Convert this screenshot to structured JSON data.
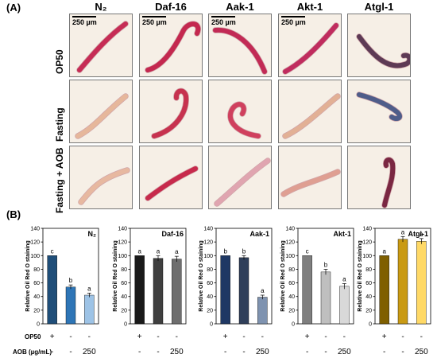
{
  "panel_a_label": "(A)",
  "panel_b_label": "(B)",
  "columns": [
    "N₂",
    "Daf-16",
    "Aak-1",
    "Akt-1",
    "Atgl-1"
  ],
  "rows": [
    "OP50",
    "Fasting",
    "Fasting + AOB"
  ],
  "scale_bar": "250 µm",
  "treatment_rows": {
    "op50_label": "OP50",
    "aob_label": "AOB (µg/mL)",
    "op50_marks": [
      "+",
      "-",
      "-"
    ],
    "aob_marks": [
      "-",
      "-",
      "250"
    ]
  },
  "chart_data": [
    {
      "type": "bar",
      "title": "N₂",
      "ylabel": "Relative Oil Red O staining",
      "ylim": [
        0,
        140
      ],
      "yticks": [
        0,
        20,
        40,
        60,
        80,
        100,
        120,
        140
      ],
      "values": [
        100,
        54,
        42
      ],
      "errors": [
        0,
        3,
        3
      ],
      "letters": [
        "c",
        "b",
        "a"
      ],
      "colors": [
        "#1f4e79",
        "#2e75b6",
        "#9dc3e6"
      ]
    },
    {
      "type": "bar",
      "title": "Daf-16",
      "ylabel": "Relative Oil Red O staining",
      "ylim": [
        0,
        140
      ],
      "yticks": [
        0,
        20,
        40,
        60,
        80,
        100,
        120,
        140
      ],
      "values": [
        100,
        96,
        95
      ],
      "errors": [
        0,
        4,
        4
      ],
      "letters": [
        "a",
        "a",
        "a"
      ],
      "colors": [
        "#1a1a1a",
        "#3f3f3f",
        "#6e6e6e"
      ]
    },
    {
      "type": "bar",
      "title": "Aak-1",
      "ylabel": "Relative Oil Red O staining",
      "ylim": [
        0,
        140
      ],
      "yticks": [
        0,
        20,
        40,
        60,
        80,
        100,
        120,
        140
      ],
      "values": [
        100,
        97,
        39
      ],
      "errors": [
        0,
        3,
        3
      ],
      "letters": [
        "b",
        "b",
        "a"
      ],
      "colors": [
        "#1f3864",
        "#2f3f5a",
        "#7f93b0"
      ]
    },
    {
      "type": "bar",
      "title": "Akt-1",
      "ylabel": "Relative Oil Red O staining",
      "ylim": [
        0,
        140
      ],
      "yticks": [
        0,
        20,
        40,
        60,
        80,
        100,
        120,
        140
      ],
      "values": [
        100,
        76,
        55
      ],
      "errors": [
        0,
        4,
        4
      ],
      "letters": [
        "c",
        "b",
        "a"
      ],
      "colors": [
        "#7f7f7f",
        "#bfbfbf",
        "#d9d9d9"
      ]
    },
    {
      "type": "bar",
      "title": "Atgl-1",
      "ylabel": "Relative Oil Red O staining",
      "ylim": [
        0,
        140
      ],
      "yticks": [
        0,
        20,
        40,
        60,
        80,
        100,
        120,
        140
      ],
      "values": [
        100,
        124,
        121
      ],
      "errors": [
        0,
        4,
        4
      ],
      "letters": [
        "a",
        "a",
        "a"
      ],
      "colors": [
        "#7f5f00",
        "#c99a14",
        "#ffd966"
      ]
    }
  ]
}
